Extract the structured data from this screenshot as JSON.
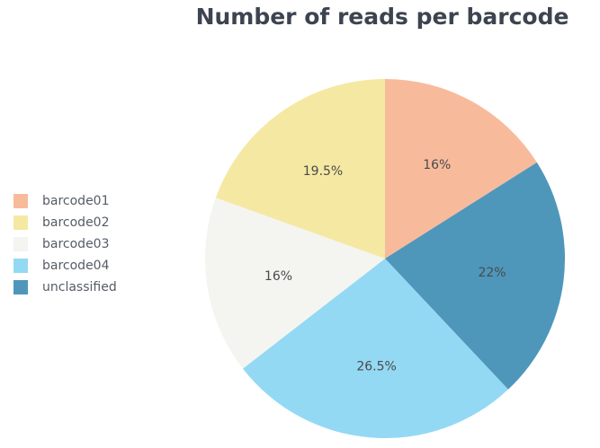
{
  "chart_data": {
    "type": "pie",
    "title": "Number of reads per barcode",
    "legend_position": "left",
    "slices": [
      {
        "name": "barcode01",
        "value": 16,
        "label": "16%",
        "color": "#f7bb9c"
      },
      {
        "name": "unclassified",
        "value": 22,
        "label": "22%",
        "color": "#4e97bb"
      },
      {
        "name": "barcode04",
        "value": 26.5,
        "label": "26.5%",
        "color": "#93d9f4"
      },
      {
        "name": "barcode03",
        "value": 16,
        "label": "16%",
        "color": "#f4f5f0"
      },
      {
        "name": "barcode02",
        "value": 19.5,
        "label": "19.5%",
        "color": "#f5e8a3"
      }
    ],
    "legend": [
      {
        "label": "barcode01",
        "color": "#f7bb9c"
      },
      {
        "label": "barcode02",
        "color": "#f5e8a3"
      },
      {
        "label": "barcode03",
        "color": "#f4f5f0"
      },
      {
        "label": "barcode04",
        "color": "#93d9f4"
      },
      {
        "label": "unclassified",
        "color": "#4e97bb"
      }
    ]
  }
}
